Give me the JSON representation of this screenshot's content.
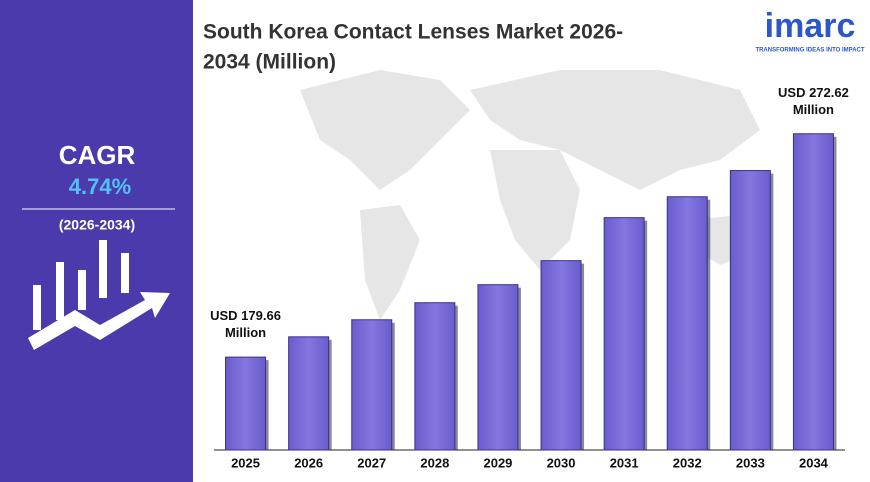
{
  "sidebar": {
    "label": "CAGR",
    "value": "4.74%",
    "period": "(2026-2034)"
  },
  "logo": {
    "name": "imarc",
    "tagline": "TRANSFORMING IDEAS INTO IMPACT"
  },
  "chart_data": {
    "type": "bar",
    "title": "South Korea Contact Lenses Market 2026-",
    "title_line2": "2034 (Million)",
    "categories": [
      "2025",
      "2026",
      "2027",
      "2028",
      "2029",
      "2030",
      "2031",
      "2032",
      "2033",
      "2034"
    ],
    "values": [
      179.66,
      188.1,
      195.2,
      202.3,
      209.8,
      219.8,
      237.7,
      246.4,
      257.3,
      272.62
    ],
    "value_labels": [
      "USD 179.66 Million",
      null,
      null,
      null,
      null,
      null,
      null,
      null,
      null,
      "USD 272.62 Million"
    ],
    "color": "#7b6dd9",
    "ylim": [
      141,
      285
    ]
  }
}
